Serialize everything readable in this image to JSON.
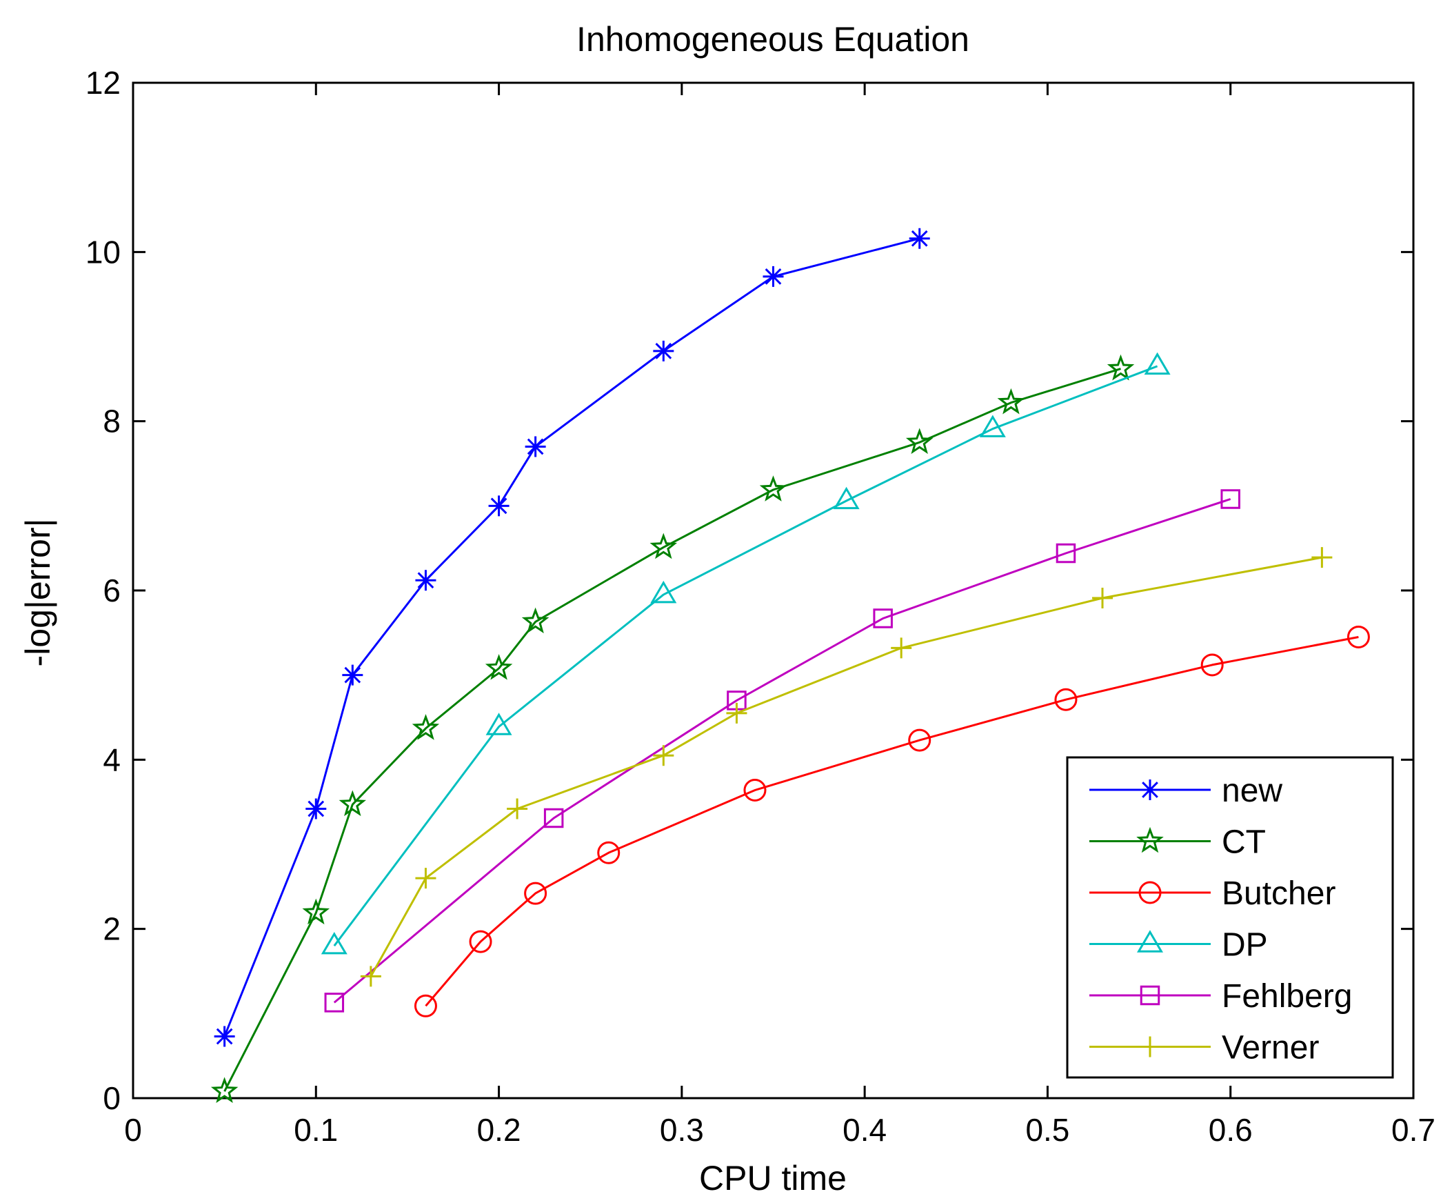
{
  "chart_data": {
    "type": "line",
    "title": "Inhomogeneous Equation",
    "xlabel": "CPU time",
    "ylabel": "-log|error|",
    "xlim": [
      0,
      0.7
    ],
    "ylim": [
      0,
      12
    ],
    "xticks": [
      0,
      0.1,
      0.2,
      0.3,
      0.4,
      0.5,
      0.6,
      0.7
    ],
    "xtick_labels": [
      "0",
      "0.1",
      "0.2",
      "0.3",
      "0.4",
      "0.5",
      "0.6",
      "0.7"
    ],
    "yticks": [
      0,
      2,
      4,
      6,
      8,
      10,
      12
    ],
    "ytick_labels": [
      "0",
      "2",
      "4",
      "6",
      "8",
      "10",
      "12"
    ],
    "grid": false,
    "legend_position": "bottom-right",
    "series": [
      {
        "name": "new",
        "color": "#0000ff",
        "marker": "asterisk",
        "x": [
          0.05,
          0.1,
          0.12,
          0.16,
          0.2,
          0.22,
          0.29,
          0.35,
          0.43
        ],
        "y": [
          0.73,
          3.42,
          5.0,
          6.12,
          7.0,
          7.7,
          8.83,
          9.71,
          10.16
        ]
      },
      {
        "name": "CT",
        "color": "#008000",
        "marker": "pentagram",
        "x": [
          0.05,
          0.1,
          0.12,
          0.16,
          0.2,
          0.22,
          0.29,
          0.35,
          0.43,
          0.48,
          0.54
        ],
        "y": [
          0.08,
          2.19,
          3.47,
          4.37,
          5.08,
          5.63,
          6.51,
          7.19,
          7.75,
          8.22,
          8.62
        ]
      },
      {
        "name": "Butcher",
        "color": "#ff0000",
        "marker": "circle",
        "x": [
          0.16,
          0.19,
          0.22,
          0.26,
          0.34,
          0.43,
          0.51,
          0.59,
          0.67
        ],
        "y": [
          1.09,
          1.85,
          2.42,
          2.9,
          3.64,
          4.23,
          4.71,
          5.12,
          5.45
        ]
      },
      {
        "name": "DP",
        "color": "#00bfbf",
        "marker": "triangle",
        "x": [
          0.11,
          0.2,
          0.29,
          0.39,
          0.47,
          0.56
        ],
        "y": [
          1.8,
          4.39,
          5.95,
          7.06,
          7.91,
          8.65
        ]
      },
      {
        "name": "Fehlberg",
        "color": "#bf00bf",
        "marker": "square",
        "x": [
          0.11,
          0.23,
          0.33,
          0.41,
          0.51,
          0.6
        ],
        "y": [
          1.13,
          3.31,
          4.7,
          5.67,
          6.44,
          7.08
        ]
      },
      {
        "name": "Verner",
        "color": "#bfbf00",
        "marker": "plus",
        "x": [
          0.13,
          0.16,
          0.21,
          0.29,
          0.33,
          0.42,
          0.53,
          0.65
        ],
        "y": [
          1.44,
          2.6,
          3.42,
          4.05,
          4.55,
          5.32,
          5.91,
          6.39
        ]
      }
    ]
  }
}
